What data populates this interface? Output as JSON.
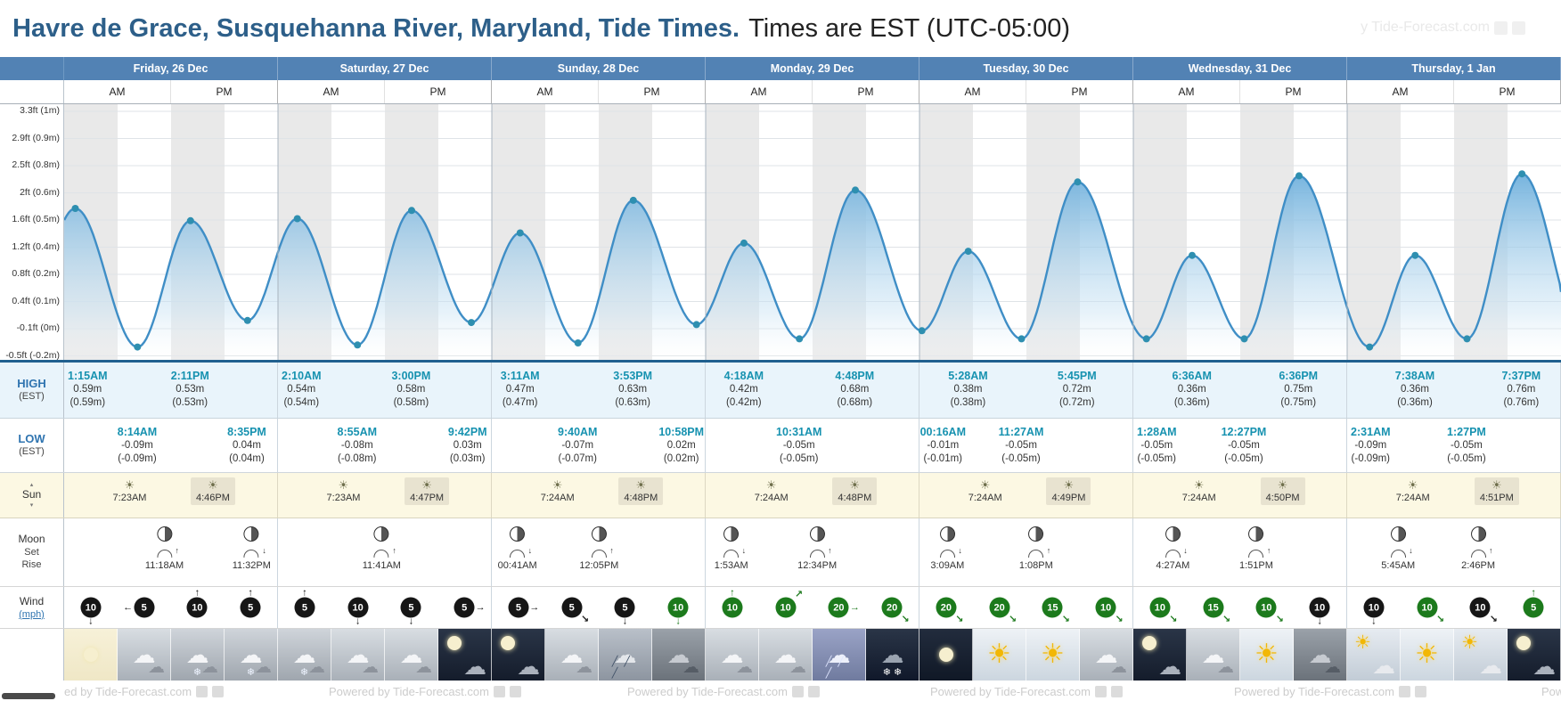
{
  "header": {
    "title_main": "Havre de Grace, Susquehanna River, Maryland, Tide Times.",
    "title_sub": "Times are EST (UTC-05:00)"
  },
  "watermark": {
    "text": "y Tide-Forecast.com"
  },
  "ampm": [
    "AM",
    "PM"
  ],
  "row_labels": {
    "high_title": "HIGH",
    "low_title": "LOW",
    "est": "(EST)",
    "sun": "Sun",
    "sun_up": "▴",
    "sun_down": "▾",
    "moon": "Moon",
    "moon_set": "Set",
    "moon_rise": "Rise",
    "wind": "Wind",
    "wind_unit": "(mph)"
  },
  "chart_data": {
    "type": "area",
    "title": "Tide curve, Havre de Grace, Susquehanna River, Maryland",
    "ylabel": "Tide height",
    "y_axis_labels": [
      "3.3ft (1m)",
      "2.9ft (0.9m)",
      "2.5ft (0.8m)",
      "2ft (0.6m)",
      "1.6ft (0.5m)",
      "1.2ft (0.4m)",
      "0.8ft (0.2m)",
      "0.4ft (0.1m)",
      "-0.1ft (0m)",
      "-0.5ft (-0.2m)"
    ],
    "x_categories": [
      "Friday, 26 Dec",
      "Saturday, 27 Dec",
      "Sunday, 28 Dec",
      "Monday, 29 Dec",
      "Tuesday, 30 Dec",
      "Wednesday, 31 Dec",
      "Thursday, 1 Jan"
    ],
    "x_range_hours": [
      0,
      168
    ],
    "ylim_m": [
      -0.25,
      1.0
    ],
    "grid": true,
    "tide_events": [
      {
        "day": 0,
        "type": "high",
        "time": "1:15AM",
        "height_m": 0.59
      },
      {
        "day": 0,
        "type": "low",
        "time": "8:14AM",
        "height_m": -0.09
      },
      {
        "day": 0,
        "type": "high",
        "time": "2:11PM",
        "height_m": 0.53
      },
      {
        "day": 0,
        "type": "low",
        "time": "8:35PM",
        "height_m": 0.04
      },
      {
        "day": 1,
        "type": "high",
        "time": "2:10AM",
        "height_m": 0.54
      },
      {
        "day": 1,
        "type": "low",
        "time": "8:55AM",
        "height_m": -0.08
      },
      {
        "day": 1,
        "type": "high",
        "time": "3:00PM",
        "height_m": 0.58
      },
      {
        "day": 1,
        "type": "low",
        "time": "9:42PM",
        "height_m": 0.03
      },
      {
        "day": 2,
        "type": "high",
        "time": "3:11AM",
        "height_m": 0.47
      },
      {
        "day": 2,
        "type": "low",
        "time": "9:40AM",
        "height_m": -0.07
      },
      {
        "day": 2,
        "type": "high",
        "time": "3:53PM",
        "height_m": 0.63
      },
      {
        "day": 2,
        "type": "low",
        "time": "10:58PM",
        "height_m": 0.02
      },
      {
        "day": 3,
        "type": "high",
        "time": "4:18AM",
        "height_m": 0.42
      },
      {
        "day": 3,
        "type": "low",
        "time": "10:31AM",
        "height_m": -0.05
      },
      {
        "day": 3,
        "type": "high",
        "time": "4:48PM",
        "height_m": 0.68
      },
      {
        "day": 4,
        "type": "low",
        "time": "00:16AM",
        "height_m": -0.01
      },
      {
        "day": 4,
        "type": "high",
        "time": "5:28AM",
        "height_m": 0.38
      },
      {
        "day": 4,
        "type": "low",
        "time": "11:27AM",
        "height_m": -0.05
      },
      {
        "day": 4,
        "type": "high",
        "time": "5:45PM",
        "height_m": 0.72
      },
      {
        "day": 5,
        "type": "low",
        "time": "1:28AM",
        "height_m": -0.05
      },
      {
        "day": 5,
        "type": "high",
        "time": "6:36AM",
        "height_m": 0.36
      },
      {
        "day": 5,
        "type": "low",
        "time": "12:27PM",
        "height_m": -0.05
      },
      {
        "day": 5,
        "type": "high",
        "time": "6:36PM",
        "height_m": 0.75
      },
      {
        "day": 6,
        "type": "low",
        "time": "2:31AM",
        "height_m": -0.09
      },
      {
        "day": 6,
        "type": "high",
        "time": "7:38AM",
        "height_m": 0.36
      },
      {
        "day": 6,
        "type": "low",
        "time": "1:27PM",
        "height_m": -0.05
      },
      {
        "day": 6,
        "type": "high",
        "time": "7:37PM",
        "height_m": 0.76
      }
    ]
  },
  "days": [
    {
      "name": "Friday, 26 Dec",
      "high": [
        {
          "time": "1:15AM",
          "h1": "0.59m",
          "h2": "(0.59m)"
        },
        {
          "time": "2:11PM",
          "h1": "0.53m",
          "h2": "(0.53m)"
        }
      ],
      "low": [
        {
          "time": "8:14AM",
          "h1": "-0.09m",
          "h2": "(-0.09m)"
        },
        {
          "time": "8:35PM",
          "h1": "0.04m",
          "h2": "(0.04m)"
        }
      ],
      "sun": {
        "rise": "7:23AM",
        "set": "4:46PM"
      },
      "moon": [
        {
          "dir": "rise",
          "time": "11:18AM"
        },
        {
          "dir": "set",
          "time": "11:32PM"
        }
      ],
      "wind": [
        {
          "v": "10",
          "dir": "d",
          "c": "#161616"
        },
        {
          "v": "5",
          "dir": "l",
          "c": "#161616"
        },
        {
          "v": "10",
          "dir": "u",
          "c": "#161616"
        },
        {
          "v": "5",
          "dir": "u",
          "c": "#161616"
        }
      ],
      "weather": [
        "moon-light",
        "cloudy",
        "snow",
        "snow"
      ]
    },
    {
      "name": "Saturday, 27 Dec",
      "high": [
        {
          "time": "2:10AM",
          "h1": "0.54m",
          "h2": "(0.54m)"
        },
        {
          "time": "3:00PM",
          "h1": "0.58m",
          "h2": "(0.58m)"
        }
      ],
      "low": [
        {
          "time": "8:55AM",
          "h1": "-0.08m",
          "h2": "(-0.08m)"
        },
        {
          "time": "9:42PM",
          "h1": "0.03m",
          "h2": "(0.03m)"
        }
      ],
      "sun": {
        "rise": "7:23AM",
        "set": "4:47PM"
      },
      "moon": [
        {
          "dir": "rise",
          "time": "11:41AM"
        }
      ],
      "wind": [
        {
          "v": "5",
          "dir": "u",
          "c": "#161616"
        },
        {
          "v": "10",
          "dir": "d",
          "c": "#161616"
        },
        {
          "v": "5",
          "dir": "d",
          "c": "#161616"
        },
        {
          "v": "5",
          "dir": "r",
          "c": "#161616"
        }
      ],
      "weather": [
        "snow",
        "cloudy",
        "cloudy",
        "night-cloud"
      ]
    },
    {
      "name": "Sunday, 28 Dec",
      "high": [
        {
          "time": "3:11AM",
          "h1": "0.47m",
          "h2": "(0.47m)"
        },
        {
          "time": "3:53PM",
          "h1": "0.63m",
          "h2": "(0.63m)"
        }
      ],
      "low": [
        {
          "time": "9:40AM",
          "h1": "-0.07m",
          "h2": "(-0.07m)"
        },
        {
          "time": "10:58PM",
          "h1": "0.02m",
          "h2": "(0.02m)"
        }
      ],
      "sun": {
        "rise": "7:24AM",
        "set": "4:48PM"
      },
      "moon": [
        {
          "dir": "set",
          "time": "00:41AM"
        },
        {
          "dir": "rise",
          "time": "12:05PM"
        }
      ],
      "wind": [
        {
          "v": "5",
          "dir": "r",
          "c": "#161616"
        },
        {
          "v": "5",
          "dir": "dr",
          "c": "#161616"
        },
        {
          "v": "5",
          "dir": "d",
          "c": "#161616"
        },
        {
          "v": "10",
          "dir": "d",
          "c": "#1c7a1c"
        }
      ],
      "weather": [
        "night-cloud",
        "cloudy",
        "rain",
        "overcast"
      ]
    },
    {
      "name": "Monday, 29 Dec",
      "high": [
        {
          "time": "4:18AM",
          "h1": "0.42m",
          "h2": "(0.42m)"
        },
        {
          "time": "4:48PM",
          "h1": "0.68m",
          "h2": "(0.68m)"
        }
      ],
      "low": [
        {
          "time": "10:31AM",
          "h1": "-0.05m",
          "h2": "(-0.05m)"
        }
      ],
      "sun": {
        "rise": "7:24AM",
        "set": "4:48PM"
      },
      "moon": [
        {
          "dir": "set",
          "time": "1:53AM"
        },
        {
          "dir": "rise",
          "time": "12:34PM"
        }
      ],
      "wind": [
        {
          "v": "10",
          "dir": "u",
          "c": "#1c7a1c"
        },
        {
          "v": "10",
          "dir": "ur",
          "c": "#1c7a1c"
        },
        {
          "v": "20",
          "dir": "r",
          "c": "#1c7a1c"
        },
        {
          "v": "20",
          "dir": "dr",
          "c": "#1c7a1c"
        }
      ],
      "weather": [
        "cloudy",
        "cloudy",
        "rain-blue",
        "night-snow"
      ]
    },
    {
      "name": "Tuesday, 30 Dec",
      "high": [
        {
          "time": "5:28AM",
          "h1": "0.38m",
          "h2": "(0.38m)"
        },
        {
          "time": "5:45PM",
          "h1": "0.72m",
          "h2": "(0.72m)"
        }
      ],
      "low": [
        {
          "time": "00:16AM",
          "h1": "-0.01m",
          "h2": "(-0.01m)"
        },
        {
          "time": "11:27AM",
          "h1": "-0.05m",
          "h2": "(-0.05m)"
        }
      ],
      "sun": {
        "rise": "7:24AM",
        "set": "4:49PM"
      },
      "moon": [
        {
          "dir": "set",
          "time": "3:09AM"
        },
        {
          "dir": "rise",
          "time": "1:08PM"
        }
      ],
      "wind": [
        {
          "v": "20",
          "dir": "dr",
          "c": "#1c7a1c"
        },
        {
          "v": "20",
          "dir": "dr",
          "c": "#1c7a1c"
        },
        {
          "v": "15",
          "dir": "dr",
          "c": "#1c7a1c"
        },
        {
          "v": "10",
          "dir": "dr",
          "c": "#1c7a1c"
        }
      ],
      "weather": [
        "night-clear",
        "sunny",
        "sunny",
        "cloudy"
      ]
    },
    {
      "name": "Wednesday, 31 Dec",
      "high": [
        {
          "time": "6:36AM",
          "h1": "0.36m",
          "h2": "(0.36m)"
        },
        {
          "time": "6:36PM",
          "h1": "0.75m",
          "h2": "(0.75m)"
        }
      ],
      "low": [
        {
          "time": "1:28AM",
          "h1": "-0.05m",
          "h2": "(-0.05m)"
        },
        {
          "time": "12:27PM",
          "h1": "-0.05m",
          "h2": "(-0.05m)"
        }
      ],
      "sun": {
        "rise": "7:24AM",
        "set": "4:50PM"
      },
      "moon": [
        {
          "dir": "set",
          "time": "4:27AM"
        },
        {
          "dir": "rise",
          "time": "1:51PM"
        }
      ],
      "wind": [
        {
          "v": "10",
          "dir": "dr",
          "c": "#1c7a1c"
        },
        {
          "v": "15",
          "dir": "dr",
          "c": "#1c7a1c"
        },
        {
          "v": "10",
          "dir": "dr",
          "c": "#1c7a1c"
        },
        {
          "v": "10",
          "dir": "d",
          "c": "#161616"
        }
      ],
      "weather": [
        "night-cloud",
        "cloudy",
        "sunny",
        "overcast"
      ]
    },
    {
      "name": "Thursday, 1 Jan",
      "high": [
        {
          "time": "7:38AM",
          "h1": "0.36m",
          "h2": "(0.36m)"
        },
        {
          "time": "7:37PM",
          "h1": "0.76m",
          "h2": "(0.76m)"
        }
      ],
      "low": [
        {
          "time": "2:31AM",
          "h1": "-0.09m",
          "h2": "(-0.09m)"
        },
        {
          "time": "1:27PM",
          "h1": "-0.05m",
          "h2": "(-0.05m)"
        }
      ],
      "sun": {
        "rise": "7:24AM",
        "set": "4:51PM"
      },
      "moon": [
        {
          "dir": "set",
          "time": "5:45AM"
        },
        {
          "dir": "rise",
          "time": "2:46PM"
        }
      ],
      "wind": [
        {
          "v": "10",
          "dir": "d",
          "c": "#161616"
        },
        {
          "v": "10",
          "dir": "dr",
          "c": "#1c7a1c"
        },
        {
          "v": "10",
          "dir": "dr",
          "c": "#161616"
        },
        {
          "v": "5",
          "dir": "u",
          "c": "#1c7a1c"
        }
      ],
      "weather": [
        "sun-cloud",
        "sunny",
        "sun-cloud",
        "night-cloud"
      ]
    }
  ],
  "footer": {
    "items": [
      "ed by Tide-Forecast.com",
      "Powered by Tide-Forecast.com",
      "Powered by Tide-Forecast.com",
      "Powered by Tide-Forecast.com",
      "Powered by Tide-Forecast.com",
      "Pow"
    ]
  }
}
